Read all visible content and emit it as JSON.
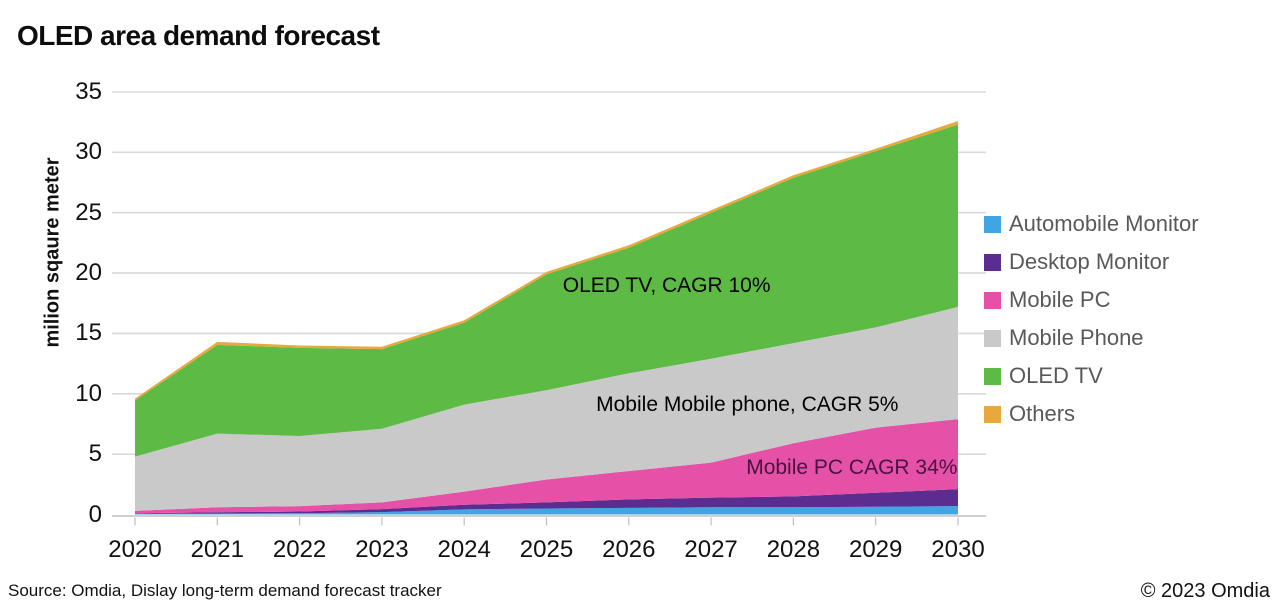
{
  "chart_data": {
    "type": "area",
    "stacked": true,
    "title": "OLED area demand forecast",
    "ylabel": "milion sqaure meter",
    "xlabel": "",
    "ylim": [
      0,
      35
    ],
    "yticks": [
      0,
      5,
      10,
      15,
      20,
      25,
      30,
      35
    ],
    "grid": true,
    "legend_position": "right",
    "x": [
      "2020",
      "2021",
      "2022",
      "2023",
      "2024",
      "2025",
      "2026",
      "2027",
      "2028",
      "2029",
      "2030"
    ],
    "series": [
      {
        "name": "Automobile Monitor",
        "color": "#41A5E1",
        "values": [
          0.05,
          0.08,
          0.1,
          0.2,
          0.42,
          0.5,
          0.55,
          0.6,
          0.6,
          0.65,
          0.7
        ]
      },
      {
        "name": "Desktop Monitor",
        "color": "#5B2D90",
        "values": [
          0.05,
          0.1,
          0.15,
          0.25,
          0.38,
          0.5,
          0.7,
          0.8,
          0.9,
          1.15,
          1.4
        ]
      },
      {
        "name": "Mobile PC",
        "color": "#E551A7",
        "values": [
          0.2,
          0.42,
          0.45,
          0.55,
          1.1,
          1.9,
          2.35,
          2.9,
          4.4,
          5.4,
          5.8
        ]
      },
      {
        "name": "Mobile Phone",
        "color": "#C9C9C9",
        "values": [
          4.5,
          6.1,
          5.8,
          6.1,
          7.2,
          7.4,
          8.1,
          8.6,
          8.3,
          8.3,
          9.3
        ]
      },
      {
        "name": "OLED TV",
        "color": "#5CBA45",
        "values": [
          4.65,
          7.35,
          7.3,
          6.6,
          6.8,
          9.6,
          10.4,
          12.1,
          13.7,
          14.6,
          15.1
        ]
      },
      {
        "name": "Others",
        "color": "#E9A83C",
        "values": [
          0.15,
          0.25,
          0.2,
          0.2,
          0.2,
          0.2,
          0.2,
          0.2,
          0.2,
          0.2,
          0.3
        ]
      }
    ],
    "annotations": [
      {
        "text": "OLED TV, CAGR 10%",
        "x": 2026.46,
        "y": 18.9,
        "color": "#000000"
      },
      {
        "text": "Mobile Mobile phone, CAGR 5%",
        "x": 2027.44,
        "y": 9.1,
        "color": "#000000"
      },
      {
        "text": "Mobile PC CAGR 34%",
        "x": 2028.71,
        "y": 3.85,
        "color": "#4A1240"
      }
    ]
  },
  "footer": {
    "source": "Source: Omdia, Dislay long-term demand forecast tracker",
    "copyright": "© 2023 Omdia"
  }
}
